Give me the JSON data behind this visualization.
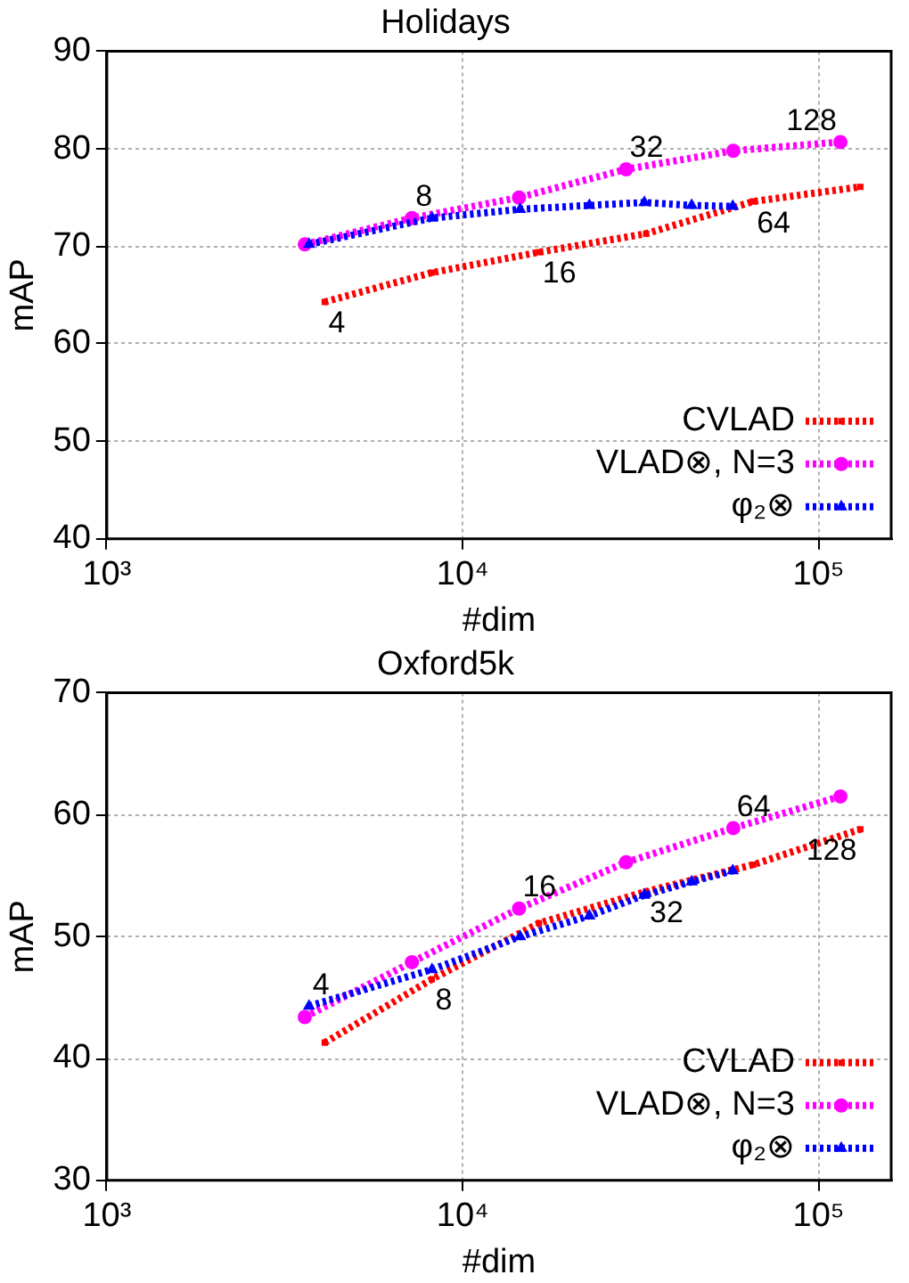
{
  "chart_data": [
    {
      "type": "line",
      "title": "Holidays",
      "xlabel": "#dim",
      "ylabel": "mAP",
      "log": "x",
      "xlim": [
        1000,
        160000
      ],
      "ylim": [
        40,
        90
      ],
      "xticks": [
        {
          "value": 1000,
          "label": "10³"
        },
        {
          "value": 10000,
          "label": "10⁴"
        },
        {
          "value": 100000,
          "label": "10⁵"
        }
      ],
      "yticks": [
        40,
        50,
        60,
        70,
        80,
        90
      ],
      "grid": true,
      "legend": "bottom right",
      "line_style": "dotted",
      "series": [
        {
          "name": "CVLAD",
          "color": "#ff0000",
          "marker": "square",
          "x": [
            4096,
            8192,
            16384,
            32768,
            65536,
            131072
          ],
          "values": [
            64.3,
            67.3,
            69.4,
            71.3,
            74.6,
            76.1
          ]
        },
        {
          "name": "VLAD⊗, N=3",
          "color": "#ff00ff",
          "marker": "circle",
          "x": [
            3600,
            7200,
            14400,
            28800,
            57600,
            115200
          ],
          "values": [
            70.2,
            72.9,
            75.0,
            77.9,
            79.8,
            80.7
          ]
        },
        {
          "name": "φ₂⊗",
          "color": "#0000ff",
          "marker": "triangle",
          "x": [
            3700,
            8200,
            14500,
            22700,
            32400,
            44000,
            57400
          ],
          "values": [
            70.2,
            72.9,
            73.8,
            74.2,
            74.5,
            74.2,
            74.1
          ]
        }
      ],
      "annotations": [
        {
          "text": "4",
          "x": 4096,
          "y": 64.3
        },
        {
          "text": "8",
          "x": 7200,
          "y": 72.9
        },
        {
          "text": "16",
          "x": 16384,
          "y": 69.4
        },
        {
          "text": "32",
          "x": 28800,
          "y": 77.9
        },
        {
          "text": "64",
          "x": 65536,
          "y": 74.6
        },
        {
          "text": "128",
          "x": 115200,
          "y": 80.7
        }
      ]
    },
    {
      "type": "line",
      "title": "Oxford5k",
      "xlabel": "#dim",
      "ylabel": "mAP",
      "log": "x",
      "xlim": [
        1000,
        160000
      ],
      "ylim": [
        30,
        70
      ],
      "xticks": [
        {
          "value": 1000,
          "label": "10³"
        },
        {
          "value": 10000,
          "label": "10⁴"
        },
        {
          "value": 100000,
          "label": "10⁵"
        }
      ],
      "yticks": [
        30,
        40,
        50,
        60,
        70
      ],
      "grid": true,
      "legend": "bottom right",
      "line_style": "dotted",
      "series": [
        {
          "name": "CVLAD",
          "color": "#ff0000",
          "marker": "square",
          "x": [
            4096,
            8192,
            16384,
            32768,
            65536,
            131072
          ],
          "values": [
            41.3,
            46.5,
            51.1,
            53.7,
            55.9,
            58.8
          ]
        },
        {
          "name": "VLAD⊗, N=3",
          "color": "#ff00ff",
          "marker": "circle",
          "x": [
            3600,
            7200,
            14400,
            28800,
            57600,
            115200
          ],
          "values": [
            43.4,
            47.9,
            52.3,
            56.1,
            58.9,
            61.5
          ]
        },
        {
          "name": "φ₂⊗",
          "color": "#0000ff",
          "marker": "triangle",
          "x": [
            3700,
            8200,
            14500,
            22700,
            32400,
            44000,
            57400
          ],
          "values": [
            44.3,
            47.3,
            50.0,
            51.7,
            53.4,
            54.5,
            55.4
          ]
        }
      ],
      "annotations": [
        {
          "text": "4",
          "x": 3700,
          "y": 44.3
        },
        {
          "text": "8",
          "x": 8192,
          "y": 46.5
        },
        {
          "text": "16",
          "x": 14400,
          "y": 52.3
        },
        {
          "text": "32",
          "x": 32768,
          "y": 53.7
        },
        {
          "text": "64",
          "x": 57600,
          "y": 58.9
        },
        {
          "text": "128",
          "x": 131072,
          "y": 58.8
        }
      ]
    }
  ]
}
